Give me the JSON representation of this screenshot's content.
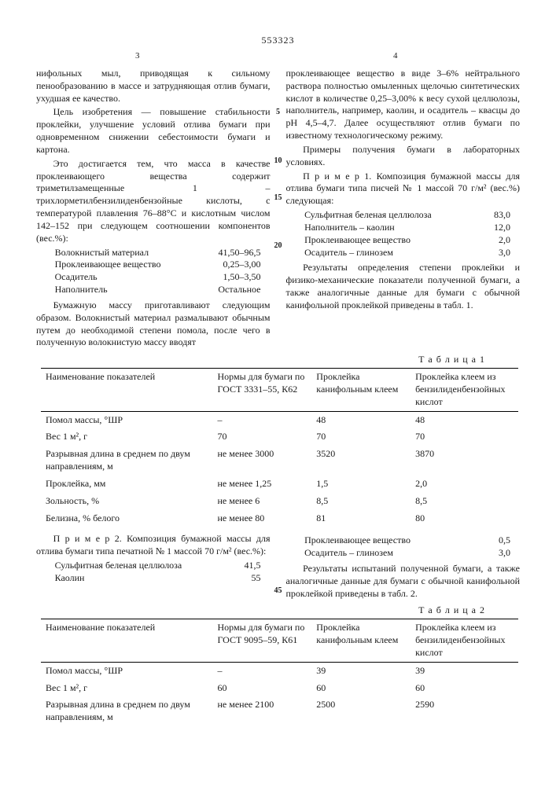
{
  "patent_number": "553323",
  "col_left_num": "3",
  "col_right_num": "4",
  "line_markers": {
    "a": "5",
    "b": "10",
    "c": "15",
    "d": "20",
    "e": "45"
  },
  "left": {
    "p1": "нифольных мыл, приводящая к сильному пенообразованию в массе и затрудняющая отлив бумаги, ухудшая ее качество.",
    "p2": "Цель изобретения — повышение стабильности проклейки, улучшение условий отлива бумаги при одновременном снижении себестоимости бумаги и картона.",
    "p3": "Это достигается тем, что масса в качестве проклеивающего вещества содержит триметилзамещенные 1 – трихлорметилбензилиденбензойные кислоты, с температурой плавления 76–88°С и кислотным числом 142–152 при следующем соотношении компонентов (вес.%):",
    "comp": [
      [
        "Волокнистый материал",
        "41,50–96,5"
      ],
      [
        "Проклеивающее вещество",
        "0,25–3,00"
      ],
      [
        "Осадитель",
        "1,50–3,50"
      ],
      [
        "Наполнитель",
        "Остальное"
      ]
    ],
    "p4": "Бумажную массу приготавливают следующим образом. Волокнистый материал размалывают обычным путем до необходимой степени помола, после чего в полученную волокнистую массу вводят"
  },
  "right": {
    "p1": "проклеивающее вещество в виде 3–6% нейтрального раствора полностью омыленных щелочью синтетических кислот в количестве 0,25–3,00% к весу сухой целлюлозы, наполнитель, например, каолин, и осадитель – квасцы до pH 4,5–4,7. Далее осуществляют отлив бумаги по известному технологическому режиму.",
    "p2": "Примеры получения бумаги в лабораторных условиях.",
    "p3": "П р и м е р 1. Композиция бумажной массы для отлива бумаги типа писчей № 1 массой 70 г/м² (вес.%) следующая:",
    "mix1": [
      [
        "Сульфитная беленая целлюлоза",
        "83,0"
      ],
      [
        "Наполнитель – каолин",
        "12,0"
      ],
      [
        "Проклеивающее вещество",
        "2,0"
      ],
      [
        "Осадитель – глинозем",
        "3,0"
      ]
    ],
    "p4": "Результаты определения степени проклейки и физико-механические показатели полученной бумаги, а также аналогичные данные для бумаги с обычной канифольной проклейкой приведены в табл. 1."
  },
  "table1": {
    "label": "Т а б л и ц а 1",
    "head": [
      "Наименование показателей",
      "Нормы для бумаги по ГОСТ 3331–55, К62",
      "Проклейка канифольным клеем",
      "Проклейка клеем из бензилиденбензойных кислот"
    ],
    "rows": [
      [
        "Помол массы, °ШР",
        "–",
        "48",
        "48"
      ],
      [
        "Вес 1 м², г",
        "70",
        "70",
        "70"
      ],
      [
        "Разрывная длина в среднем по двум направлениям, м",
        "не менее 3000",
        "3520",
        "3870"
      ],
      [
        "Проклейка, мм",
        "не менее 1,25",
        "1,5",
        "2,0"
      ],
      [
        "Зольность, %",
        "не менее 6",
        "8,5",
        "8,5"
      ],
      [
        "Белизна, % белого",
        "не менее 80",
        "81",
        "80"
      ]
    ]
  },
  "between": {
    "leftp": "П р и м е р 2. Композиция бумажной массы для отлива бумаги типа печатной № 1 массой 70 г/м² (вес.%):",
    "leftlist": [
      [
        "Сульфитная беленая целлюлоза",
        "41,5"
      ],
      [
        "Каолин",
        "55"
      ]
    ],
    "rightlist": [
      [
        "Проклеивающее вещество",
        "0,5"
      ],
      [
        "Осадитель – глинозем",
        "3,0"
      ]
    ],
    "rightp": "Результаты испытаний полученной бумаги, а также аналогичные данные для бумаги с обычной канифольной проклейкой приведены в табл. 2."
  },
  "table2": {
    "label": "Т а б л и ц а 2",
    "head": [
      "Наименование показателей",
      "Нормы для бумаги по ГОСТ 9095–59, К61",
      "Проклейка канифольным клеем",
      "Проклейка клеем из бензилиденбензойных кислот"
    ],
    "rows": [
      [
        "Помол массы, °ШР",
        "–",
        "39",
        "39"
      ],
      [
        "Вес 1 м², г",
        "60",
        "60",
        "60"
      ],
      [
        "Разрывная длина в среднем по двум направлениям, м",
        "не менее 2100",
        "2500",
        "2590"
      ]
    ]
  }
}
